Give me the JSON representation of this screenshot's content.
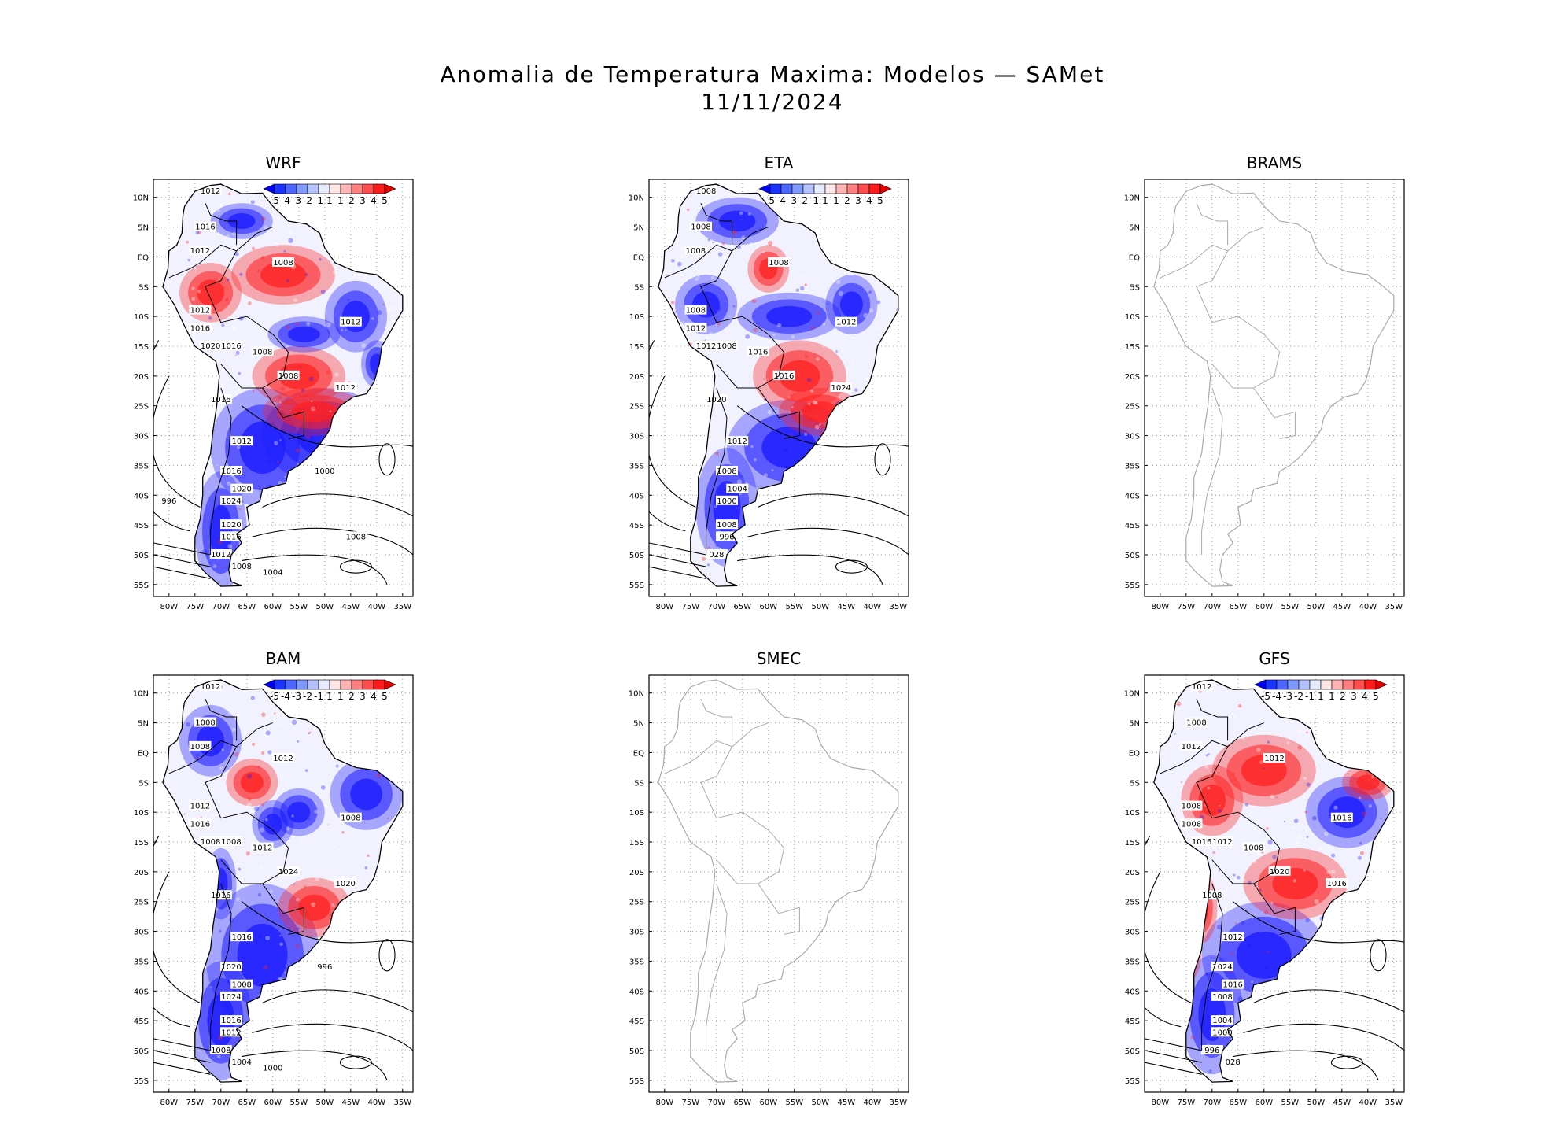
{
  "title": {
    "line1": "Anomalia de Temperatura Maxima: Modelos — SAMet",
    "line2": "11/11/2024"
  },
  "axes": {
    "lat_labels": [
      "10N",
      "5N",
      "EQ",
      "5S",
      "10S",
      "15S",
      "20S",
      "25S",
      "30S",
      "35S",
      "40S",
      "45S",
      "50S",
      "55S"
    ],
    "lon_labels": [
      "80W",
      "75W",
      "70W",
      "65W",
      "60W",
      "55W",
      "50W",
      "45W",
      "40W",
      "35W"
    ]
  },
  "colorbar": {
    "labels": [
      "-5",
      "-4",
      "-3",
      "-2",
      "-1",
      "1",
      "1",
      "2",
      "3",
      "4",
      "5"
    ],
    "colors": [
      "#0000ff",
      "#1a33ff",
      "#4d66ff",
      "#8099ff",
      "#b3c2ff",
      "#e6ebff",
      "#ffe6e6",
      "#ffb3b3",
      "#ff8080",
      "#ff4d4d",
      "#ff1a1a",
      "#e60000"
    ]
  },
  "colors": {
    "cold": "#1a1aff",
    "warm": "#ff2020",
    "land_outline": "#000000",
    "empty_outline": "#aaaaaa",
    "grid": "#999999"
  },
  "panels": [
    {
      "id": "wrf",
      "name": "WRF",
      "has_data": true,
      "isobars": [
        "1012",
        "1016",
        "1012",
        "1012",
        "1016",
        "1020",
        "1008",
        "1012",
        "1016",
        "1008",
        "1012",
        "1008",
        "1016",
        "1012",
        "1016",
        "1020",
        "1024",
        "1020",
        "1016",
        "1012",
        "1008",
        "1004",
        "1000",
        "1008",
        "996"
      ]
    },
    {
      "id": "eta",
      "name": "ETA",
      "has_data": true,
      "isobars": [
        "1008",
        "1008",
        "1008",
        "1008",
        "1012",
        "1012",
        "1008",
        "1012",
        "1008",
        "1016",
        "1024",
        "1016",
        "1020",
        "1012",
        "1008",
        "1004",
        "1000",
        "1008",
        "996",
        "028"
      ]
    },
    {
      "id": "brams",
      "name": "BRAMS",
      "has_data": false,
      "isobars": []
    },
    {
      "id": "bam",
      "name": "BAM",
      "has_data": true,
      "isobars": [
        "1012",
        "1008",
        "1008",
        "1012",
        "1016",
        "1008",
        "1012",
        "1008",
        "1008",
        "1012",
        "1020",
        "1024",
        "1016",
        "1016",
        "1020",
        "1008",
        "1024",
        "1016",
        "1012",
        "1008",
        "1004",
        "1000",
        "996"
      ]
    },
    {
      "id": "smec",
      "name": "SMEC",
      "has_data": false,
      "isobars": []
    },
    {
      "id": "gfs",
      "name": "GFS",
      "has_data": true,
      "isobars": [
        "1012",
        "1008",
        "1012",
        "1008",
        "1008",
        "1016",
        "1012",
        "1016",
        "1012",
        "1008",
        "1016",
        "1020",
        "1008",
        "1012",
        "1024",
        "1016",
        "1008",
        "1004",
        "1000",
        "996",
        "028"
      ]
    }
  ]
}
